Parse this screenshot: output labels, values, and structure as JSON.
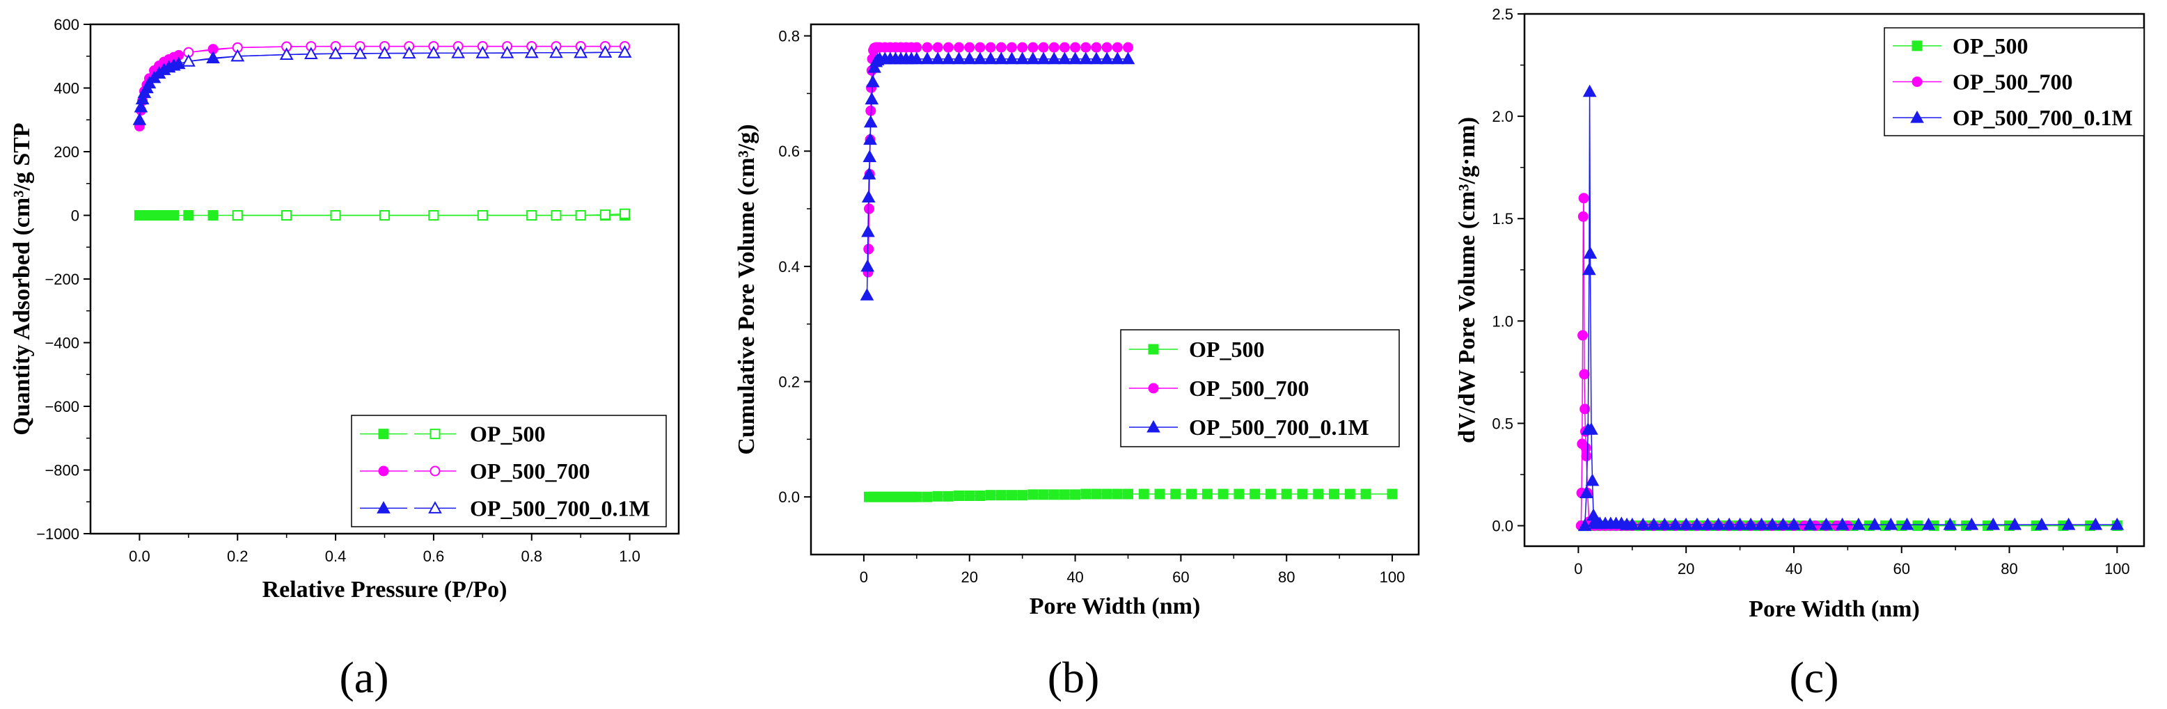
{
  "colors": {
    "OP_500": "#22ee22",
    "OP_500_700": "#ff00ff",
    "OP_500_700_0.1M": "#1a1aee"
  },
  "chart_data": [
    {
      "panel": "(a)",
      "type": "line",
      "xlabel": "Relative Pressure (P/Po)",
      "ylabel": "Quantity Adsorbed (cm³/g STP",
      "xlim": [
        -0.1,
        1.1
      ],
      "ylim": [
        -1000,
        600
      ],
      "xticks": [
        0.0,
        0.2,
        0.4,
        0.6,
        0.8,
        1.0
      ],
      "xticklabels": [
        "0.0",
        "0.2",
        "0.4",
        "0.6",
        "0.8",
        "1.0"
      ],
      "yticks": [
        -1000,
        -800,
        -600,
        -400,
        -200,
        0,
        200,
        400,
        600
      ],
      "yticklabels": [
        "−1000",
        "−800",
        "−600",
        "−400",
        "−200",
        "0",
        "200",
        "400",
        "600"
      ],
      "legend_position": "bottom-right",
      "legend": [
        "OP_500",
        "OP_500_700",
        "OP_500_700_0.1M"
      ],
      "series": [
        {
          "name": "OP_500",
          "marker": "square",
          "branch": "adsorption",
          "filled": true,
          "x": [
            0.0,
            0.005,
            0.01,
            0.02,
            0.03,
            0.05,
            0.07,
            0.1,
            0.15,
            0.2,
            0.3,
            0.4,
            0.5,
            0.6,
            0.7,
            0.8,
            0.9,
            0.95,
            0.99
          ],
          "y": [
            0,
            0,
            0,
            0,
            0,
            0,
            0,
            0,
            0,
            0,
            0,
            0,
            0,
            0,
            0,
            0,
            0,
            0,
            0
          ]
        },
        {
          "name": "OP_500",
          "marker": "square",
          "branch": "desorption",
          "filled": false,
          "x": [
            0.99,
            0.95,
            0.9,
            0.85,
            0.8,
            0.7,
            0.6,
            0.5,
            0.4,
            0.3,
            0.2
          ],
          "y": [
            5,
            2,
            0,
            0,
            0,
            0,
            0,
            0,
            0,
            0,
            0
          ]
        },
        {
          "name": "OP_500_700",
          "marker": "circle",
          "branch": "adsorption",
          "filled": true,
          "x": [
            0.0,
            0.003,
            0.006,
            0.01,
            0.015,
            0.02,
            0.03,
            0.04,
            0.05,
            0.06,
            0.07,
            0.08,
            0.1,
            0.15,
            0.2,
            0.3,
            0.4,
            0.5,
            0.6,
            0.7,
            0.8,
            0.9,
            0.95,
            0.99
          ],
          "y": [
            280,
            330,
            360,
            390,
            410,
            430,
            455,
            470,
            482,
            490,
            497,
            503,
            512,
            522,
            527,
            530,
            531,
            531,
            531,
            531,
            531,
            531,
            531,
            531
          ]
        },
        {
          "name": "OP_500_700",
          "marker": "circle",
          "branch": "desorption",
          "filled": false,
          "x": [
            0.99,
            0.95,
            0.9,
            0.85,
            0.8,
            0.75,
            0.7,
            0.65,
            0.6,
            0.55,
            0.5,
            0.45,
            0.4,
            0.35,
            0.3,
            0.2,
            0.1
          ],
          "y": [
            531,
            531,
            531,
            531,
            531,
            531,
            531,
            531,
            531,
            531,
            531,
            531,
            531,
            531,
            530,
            527,
            512
          ]
        },
        {
          "name": "OP_500_700_0.1M",
          "marker": "triangle",
          "branch": "adsorption",
          "filled": true,
          "x": [
            0.0,
            0.003,
            0.006,
            0.01,
            0.015,
            0.02,
            0.03,
            0.04,
            0.05,
            0.06,
            0.07,
            0.08,
            0.1,
            0.15,
            0.2,
            0.3,
            0.4,
            0.5,
            0.6,
            0.7,
            0.8,
            0.9,
            0.95,
            0.99
          ],
          "y": [
            300,
            340,
            365,
            385,
            400,
            415,
            432,
            446,
            457,
            465,
            471,
            476,
            484,
            494,
            500,
            505,
            508,
            509,
            510,
            510,
            511,
            511,
            512,
            512
          ]
        },
        {
          "name": "OP_500_700_0.1M",
          "marker": "triangle",
          "branch": "desorption",
          "filled": false,
          "x": [
            0.99,
            0.95,
            0.9,
            0.85,
            0.8,
            0.75,
            0.7,
            0.65,
            0.6,
            0.55,
            0.5,
            0.45,
            0.4,
            0.35,
            0.3,
            0.2,
            0.1
          ],
          "y": [
            512,
            512,
            511,
            511,
            511,
            510,
            510,
            510,
            510,
            509,
            509,
            508,
            508,
            507,
            505,
            500,
            484
          ]
        }
      ]
    },
    {
      "panel": "(b)",
      "type": "line",
      "xlabel": "Pore Width (nm)",
      "ylabel": "Cumulative Pore Volume (cm³/g)",
      "xlim": [
        -10,
        105
      ],
      "ylim": [
        -0.1,
        0.82
      ],
      "xticks": [
        0,
        20,
        40,
        60,
        80,
        100
      ],
      "xticklabels": [
        "0",
        "20",
        "40",
        "60",
        "80",
        "100"
      ],
      "yticks": [
        0.0,
        0.2,
        0.4,
        0.6,
        0.8
      ],
      "yticklabels": [
        "0.0",
        "0.2",
        "0.4",
        "0.6",
        "0.8"
      ],
      "legend_position": "center-right",
      "legend": [
        "OP_500",
        "OP_500_700",
        "OP_500_700_0.1M"
      ],
      "series": [
        {
          "name": "OP_500",
          "marker": "square",
          "x": [
            1,
            2,
            3,
            4,
            5,
            6,
            7,
            8,
            9,
            10,
            12,
            14,
            16,
            18,
            20,
            22,
            24,
            26,
            28,
            30,
            32,
            34,
            36,
            38,
            40,
            42,
            44,
            46,
            48,
            50,
            53,
            56,
            59,
            62,
            65,
            68,
            71,
            74,
            77,
            80,
            83,
            86,
            89,
            92,
            95,
            100
          ],
          "y": [
            0.0,
            0.0,
            0.0,
            0.0,
            0.0,
            0.0,
            0.0,
            0.0,
            0.0,
            0.0,
            0.0,
            0.001,
            0.001,
            0.002,
            0.002,
            0.002,
            0.003,
            0.003,
            0.003,
            0.003,
            0.004,
            0.004,
            0.004,
            0.004,
            0.004,
            0.005,
            0.005,
            0.005,
            0.005,
            0.005,
            0.005,
            0.005,
            0.005,
            0.005,
            0.005,
            0.005,
            0.005,
            0.005,
            0.005,
            0.005,
            0.005,
            0.005,
            0.005,
            0.005,
            0.005,
            0.005
          ]
        },
        {
          "name": "OP_500_700",
          "marker": "circle",
          "x": [
            0.8,
            0.9,
            1.0,
            1.1,
            1.2,
            1.3,
            1.4,
            1.5,
            1.6,
            1.8,
            2.0,
            2.3,
            2.6,
            3,
            4,
            5,
            6,
            7,
            8,
            9,
            10,
            12,
            14,
            16,
            18,
            20,
            22,
            24,
            26,
            28,
            30,
            32,
            34,
            36,
            38,
            40,
            42,
            44,
            46,
            48,
            50
          ],
          "y": [
            0.39,
            0.43,
            0.5,
            0.56,
            0.62,
            0.67,
            0.71,
            0.74,
            0.76,
            0.775,
            0.779,
            0.78,
            0.78,
            0.78,
            0.78,
            0.78,
            0.78,
            0.78,
            0.78,
            0.78,
            0.78,
            0.78,
            0.78,
            0.78,
            0.78,
            0.78,
            0.78,
            0.78,
            0.78,
            0.78,
            0.78,
            0.78,
            0.78,
            0.78,
            0.78,
            0.78,
            0.78,
            0.78,
            0.78,
            0.78,
            0.78
          ]
        },
        {
          "name": "OP_500_700_0.1M",
          "marker": "triangle",
          "x": [
            0.6,
            0.7,
            0.8,
            0.9,
            1.0,
            1.1,
            1.2,
            1.3,
            1.5,
            1.7,
            2.0,
            2.3,
            2.6,
            3,
            4,
            5,
            6,
            7,
            8,
            9,
            10,
            12,
            14,
            16,
            18,
            20,
            22,
            24,
            26,
            28,
            30,
            32,
            34,
            36,
            38,
            40,
            42,
            44,
            46,
            48,
            50
          ],
          "y": [
            0.35,
            0.4,
            0.46,
            0.52,
            0.56,
            0.59,
            0.62,
            0.65,
            0.69,
            0.72,
            0.745,
            0.755,
            0.758,
            0.76,
            0.76,
            0.76,
            0.76,
            0.76,
            0.76,
            0.76,
            0.76,
            0.76,
            0.76,
            0.76,
            0.76,
            0.76,
            0.76,
            0.76,
            0.76,
            0.76,
            0.76,
            0.76,
            0.76,
            0.76,
            0.76,
            0.76,
            0.76,
            0.76,
            0.76,
            0.76,
            0.76
          ]
        }
      ]
    },
    {
      "panel": "(c)",
      "type": "line",
      "xlabel": "Pore Width (nm)",
      "ylabel": "dV/dW Pore Volume (cm³/g·nm)",
      "xlim": [
        -10,
        105
      ],
      "ylim": [
        -0.1,
        2.5
      ],
      "xticks": [
        0,
        20,
        40,
        60,
        80,
        100
      ],
      "xticklabels": [
        "0",
        "20",
        "40",
        "60",
        "80",
        "100"
      ],
      "yticks": [
        0.0,
        0.5,
        1.0,
        1.5,
        2.0,
        2.5
      ],
      "yticklabels": [
        "0.0",
        "0.5",
        "1.0",
        "1.5",
        "2.0",
        "2.5"
      ],
      "legend_position": "top-right",
      "legend": [
        "OP_500",
        "OP_500_700",
        "OP_500_700_0.1M"
      ],
      "series": [
        {
          "name": "OP_500",
          "marker": "square",
          "x": [
            1,
            3,
            5,
            7,
            9,
            11,
            13,
            15,
            17,
            19,
            21,
            23,
            25,
            27,
            29,
            31,
            33,
            35,
            37,
            39,
            41,
            43,
            45,
            47,
            49,
            51,
            54,
            57,
            60,
            63,
            66,
            69,
            72,
            76,
            80,
            85,
            90,
            95,
            100
          ],
          "y": [
            0,
            0,
            0,
            0,
            0,
            0,
            0,
            0,
            0,
            0,
            0,
            0,
            0,
            0,
            0,
            0,
            0,
            0,
            0,
            0,
            0,
            0,
            0,
            0,
            0,
            0,
            0,
            0,
            0,
            0,
            0,
            0,
            0,
            0,
            0,
            0,
            0,
            0,
            0
          ]
        },
        {
          "name": "OP_500_700",
          "marker": "circle",
          "x": [
            0.5,
            0.6,
            0.7,
            0.8,
            0.9,
            1.0,
            1.1,
            1.2,
            1.3,
            1.4,
            1.5,
            1.7,
            2.0,
            2.5,
            3,
            4,
            5,
            6,
            7,
            8,
            9,
            10,
            12,
            14,
            16,
            18,
            20,
            22,
            24,
            26,
            28,
            30,
            32,
            34,
            36,
            38,
            40,
            42,
            44,
            46,
            48,
            50
          ],
          "y": [
            0.0,
            0.16,
            0.4,
            0.93,
            1.51,
            1.6,
            0.74,
            0.57,
            0.46,
            0.38,
            0.34,
            0.16,
            0.02,
            0.01,
            0.0,
            0.0,
            0.0,
            0.0,
            0.0,
            0.0,
            0.0,
            0.0,
            0.0,
            0.0,
            0.0,
            0.0,
            0.0,
            0.0,
            0.0,
            0.0,
            0.0,
            0.0,
            0.0,
            0.0,
            0.0,
            0.0,
            0.0,
            0.0,
            0.0,
            0.0,
            0.0,
            0.0
          ]
        },
        {
          "name": "OP_500_700_0.1M",
          "marker": "triangle",
          "x": [
            1.2,
            1.5,
            1.8,
            2.0,
            2.1,
            2.2,
            2.4,
            2.6,
            2.8,
            3.0,
            3.3,
            3.7,
            4,
            5,
            6,
            7,
            8,
            9,
            10,
            12,
            14,
            16,
            18,
            20,
            22,
            24,
            26,
            28,
            30,
            32,
            34,
            36,
            38,
            40,
            43,
            46,
            49,
            52,
            55,
            58,
            61,
            65,
            69,
            73,
            77,
            81,
            86,
            91,
            96,
            100
          ],
          "y": [
            0.0,
            0.16,
            0.47,
            1.25,
            2.12,
            1.33,
            0.47,
            0.22,
            0.05,
            0.02,
            0.01,
            0.01,
            0.01,
            0.01,
            0.01,
            0.01,
            0.01,
            0.005,
            0.005,
            0.005,
            0.005,
            0.005,
            0.005,
            0.005,
            0.005,
            0.005,
            0.005,
            0.005,
            0.005,
            0.005,
            0.005,
            0.005,
            0.005,
            0.005,
            0.005,
            0.005,
            0.005,
            0.005,
            0.005,
            0.005,
            0.005,
            0.005,
            0.005,
            0.005,
            0.005,
            0.005,
            0.005,
            0.005,
            0.005,
            0.005
          ]
        }
      ]
    }
  ]
}
